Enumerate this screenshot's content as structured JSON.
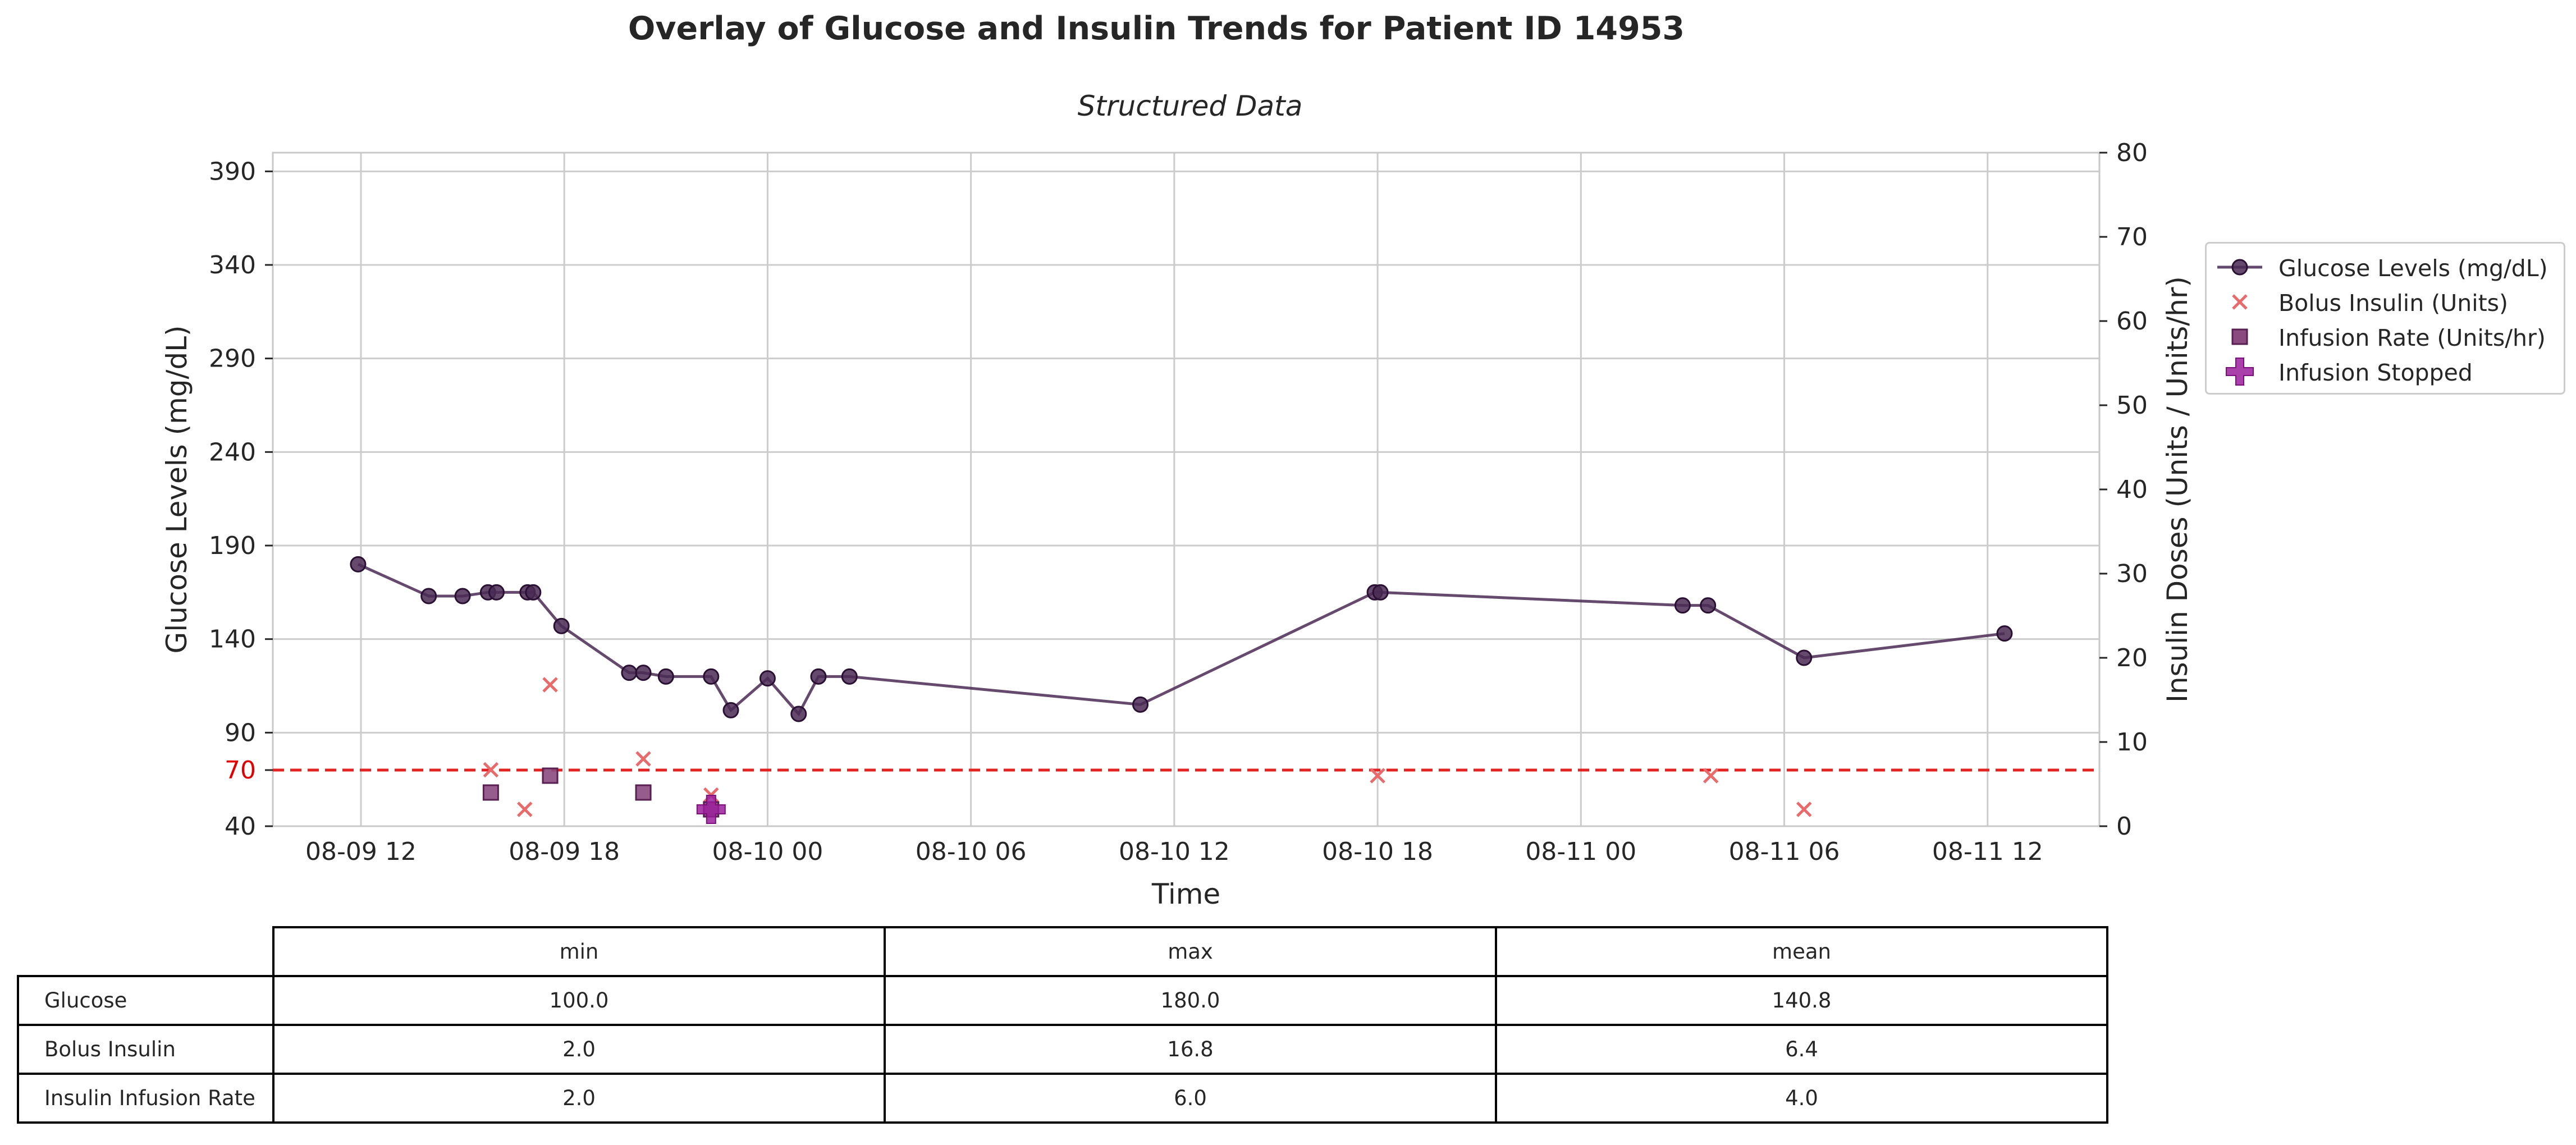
{
  "chart_data": {
    "type": "line",
    "title": "Overlay of Glucose and Insulin Trends for Patient ID 14953",
    "subtitle": "Structured Data",
    "xlabel": "Time",
    "ylabel": "Glucose Levels (mg/dL)",
    "y2label": "Insulin Doses (Units / Units/hr)",
    "x_ticks": [
      "08-09 12",
      "08-09 18",
      "08-10 00",
      "08-10 06",
      "08-10 12",
      "08-10 18",
      "08-11 00",
      "08-11 06",
      "08-11 12"
    ],
    "x_tick_times": [
      "2023-08-09T12:00",
      "2023-08-09T18:00",
      "2023-08-10T00:00",
      "2023-08-10T06:00",
      "2023-08-10T12:00",
      "2023-08-10T18:00",
      "2023-08-11T00:00",
      "2023-08-11T06:00",
      "2023-08-11T12:00"
    ],
    "xlim": [
      "2023-08-09T09:24",
      "2023-08-11T15:18"
    ],
    "y_ticks": [
      40,
      70,
      90,
      140,
      190,
      240,
      290,
      340,
      390
    ],
    "ylim": [
      40,
      400
    ],
    "y2_ticks": [
      0,
      10,
      20,
      30,
      40,
      50,
      60,
      70,
      80
    ],
    "y2lim": [
      0,
      80
    ],
    "grid": true,
    "legend_position": "right-outside",
    "threshold": {
      "value": 70,
      "label": "70",
      "color": "#e32222",
      "style": "dashed"
    },
    "series": [
      {
        "name": "Glucose Levels (mg/dL)",
        "kind": "line",
        "axis": "left",
        "color": "#4a2a55",
        "points": [
          [
            "2023-08-09T11:55",
            180
          ],
          [
            "2023-08-09T14:00",
            163
          ],
          [
            "2023-08-09T15:00",
            163
          ],
          [
            "2023-08-09T15:45",
            165
          ],
          [
            "2023-08-09T16:00",
            165
          ],
          [
            "2023-08-09T16:55",
            165
          ],
          [
            "2023-08-09T17:05",
            165
          ],
          [
            "2023-08-09T17:55",
            147
          ],
          [
            "2023-08-09T19:55",
            122
          ],
          [
            "2023-08-09T20:20",
            122
          ],
          [
            "2023-08-09T21:00",
            120
          ],
          [
            "2023-08-09T22:20",
            120
          ],
          [
            "2023-08-09T22:55",
            102
          ],
          [
            "2023-08-10T00:00",
            119
          ],
          [
            "2023-08-10T00:55",
            100
          ],
          [
            "2023-08-10T01:30",
            120
          ],
          [
            "2023-08-10T02:25",
            120
          ],
          [
            "2023-08-10T11:00",
            105
          ],
          [
            "2023-08-10T17:55",
            165
          ],
          [
            "2023-08-10T18:05",
            165
          ],
          [
            "2023-08-11T03:00",
            158
          ],
          [
            "2023-08-11T03:45",
            158
          ],
          [
            "2023-08-11T06:35",
            130
          ],
          [
            "2023-08-11T12:30",
            143
          ]
        ]
      },
      {
        "name": "Bolus Insulin (Units)",
        "kind": "scatter",
        "marker": "x",
        "axis": "right",
        "color": "#e86a6a",
        "points": [
          [
            "2023-08-09T15:50",
            6.7
          ],
          [
            "2023-08-09T16:50",
            2
          ],
          [
            "2023-08-09T17:35",
            16.8
          ],
          [
            "2023-08-09T20:20",
            8
          ],
          [
            "2023-08-09T22:20",
            3.7
          ],
          [
            "2023-08-10T18:00",
            6
          ],
          [
            "2023-08-11T03:50",
            6
          ],
          [
            "2023-08-11T06:35",
            2
          ]
        ]
      },
      {
        "name": "Infusion Rate (Units/hr)",
        "kind": "scatter",
        "marker": "square",
        "axis": "right",
        "color": "#8a4a80",
        "points": [
          [
            "2023-08-09T15:50",
            4
          ],
          [
            "2023-08-09T17:35",
            6
          ],
          [
            "2023-08-09T20:20",
            4
          ],
          [
            "2023-08-09T22:20",
            2
          ]
        ]
      },
      {
        "name": "Infusion Stopped",
        "kind": "scatter",
        "marker": "plus",
        "axis": "right",
        "color": "#9b1f9b",
        "points": [
          [
            "2023-08-09T22:20",
            2
          ]
        ]
      }
    ]
  },
  "table": {
    "columns": [
      "min",
      "max",
      "mean"
    ],
    "rows": [
      {
        "label": "Glucose",
        "values": [
          "100.0",
          "180.0",
          "140.8"
        ]
      },
      {
        "label": "Bolus Insulin",
        "values": [
          "2.0",
          "16.8",
          "6.4"
        ]
      },
      {
        "label": "Insulin Infusion Rate",
        "values": [
          "2.0",
          "6.0",
          "4.0"
        ]
      }
    ]
  }
}
